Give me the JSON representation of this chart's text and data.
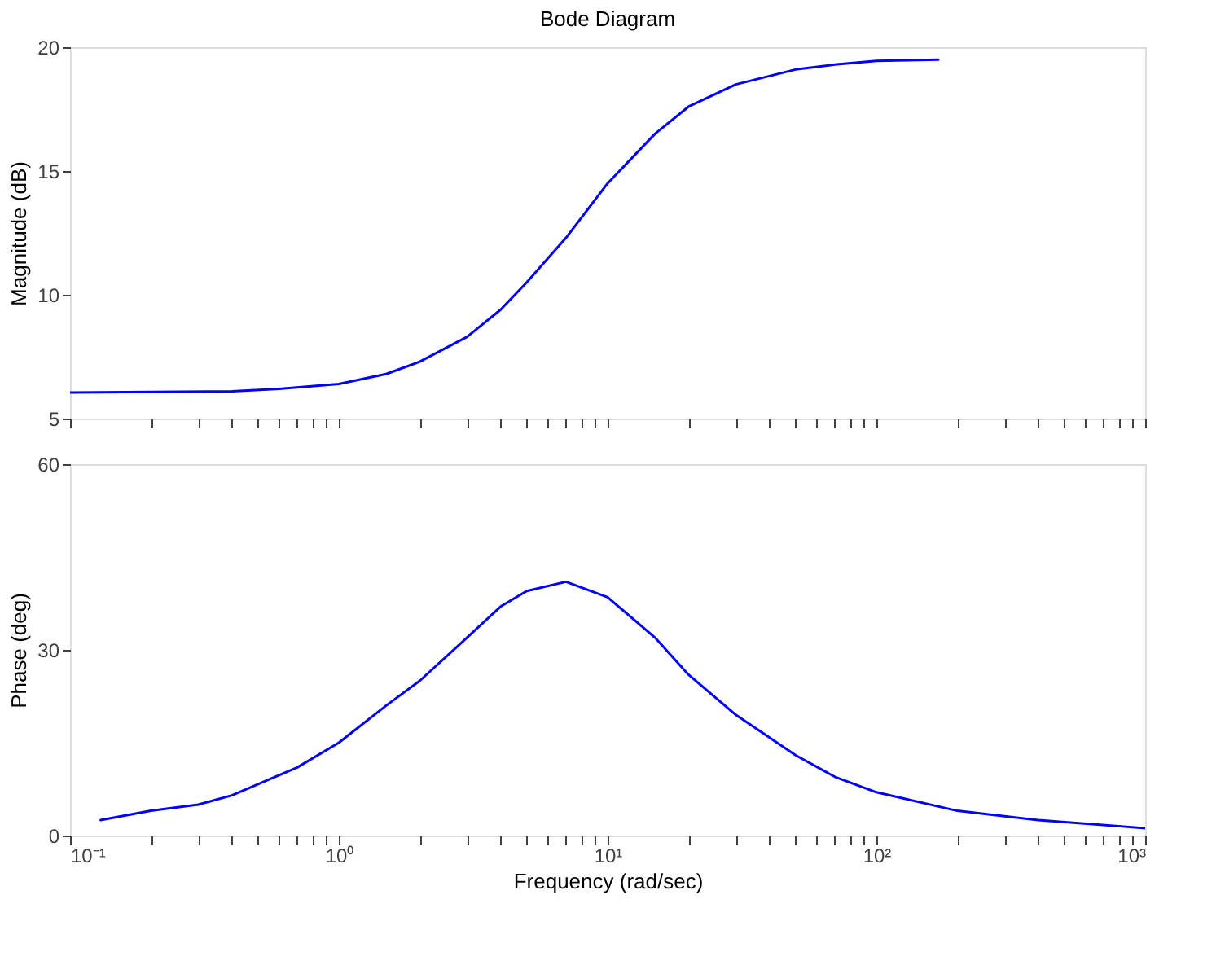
{
  "chart_data": [
    {
      "type": "line",
      "title": "Bode Diagram",
      "ylabel": "Magnitude (dB)",
      "log": "x",
      "tick_labels": "y",
      "grid": false,
      "line_style": "solid",
      "marker": "none",
      "xlim": [
        0.1,
        1000
      ],
      "ylim": [
        5,
        20
      ],
      "yticks": [
        5,
        10,
        15,
        20
      ],
      "xticks": [
        {
          "value": 0.1,
          "label": null
        },
        {
          "value": 0.2,
          "label": null
        },
        {
          "value": 0.3,
          "label": null
        },
        {
          "value": 0.4,
          "label": null
        },
        {
          "value": 0.5,
          "label": null
        },
        {
          "value": 0.6,
          "label": null
        },
        {
          "value": 0.7,
          "label": null
        },
        {
          "value": 0.8,
          "label": null
        },
        {
          "value": 0.9,
          "label": null
        },
        {
          "value": 1,
          "label": null
        },
        {
          "value": 2,
          "label": null
        },
        {
          "value": 3,
          "label": null
        },
        {
          "value": 4,
          "label": null
        },
        {
          "value": 5,
          "label": null
        },
        {
          "value": 6,
          "label": null
        },
        {
          "value": 7,
          "label": null
        },
        {
          "value": 8,
          "label": null
        },
        {
          "value": 9,
          "label": null
        },
        {
          "value": 10,
          "label": null
        },
        {
          "value": 20,
          "label": null
        },
        {
          "value": 30,
          "label": null
        },
        {
          "value": 40,
          "label": null
        },
        {
          "value": 50,
          "label": null
        },
        {
          "value": 60,
          "label": null
        },
        {
          "value": 70,
          "label": null
        },
        {
          "value": 80,
          "label": null
        },
        {
          "value": 90,
          "label": null
        },
        {
          "value": 100,
          "label": null
        },
        {
          "value": 200,
          "label": null
        },
        {
          "value": 300,
          "label": null
        },
        {
          "value": 400,
          "label": null
        },
        {
          "value": 500,
          "label": null
        },
        {
          "value": 600,
          "label": null
        },
        {
          "value": 700,
          "label": null
        },
        {
          "value": 800,
          "label": null
        },
        {
          "value": 900,
          "label": null
        },
        {
          "value": 1000,
          "label": null
        }
      ],
      "series": [
        {
          "color": "#0000ff",
          "x": [
            0.1,
            0.4,
            0.6,
            1,
            1.5,
            2,
            3,
            4,
            5,
            7,
            10,
            15,
            20,
            30,
            50,
            70,
            100,
            170
          ],
          "values": [
            6.05,
            6.1,
            6.2,
            6.4,
            6.8,
            7.3,
            8.3,
            9.4,
            10.5,
            12.3,
            14.5,
            16.5,
            17.6,
            18.5,
            19.1,
            19.3,
            19.45,
            19.5
          ]
        }
      ]
    },
    {
      "type": "line",
      "ylabel": "Phase (deg)",
      "xlabel": "Frequency (rad/sec)",
      "log": "x",
      "grid": false,
      "line_style": "solid",
      "marker": "none",
      "xlim": [
        0.1,
        1000
      ],
      "ylim": [
        0,
        60
      ],
      "yticks": [
        0,
        30,
        60
      ],
      "xticks": [
        {
          "value": 0.1,
          "label": "10⁻¹"
        },
        {
          "value": 0.2,
          "label": null
        },
        {
          "value": 0.3,
          "label": null
        },
        {
          "value": 0.4,
          "label": null
        },
        {
          "value": 0.5,
          "label": null
        },
        {
          "value": 0.6,
          "label": null
        },
        {
          "value": 0.7,
          "label": null
        },
        {
          "value": 0.8,
          "label": null
        },
        {
          "value": 0.9,
          "label": null
        },
        {
          "value": 1,
          "label": "10⁰"
        },
        {
          "value": 2,
          "label": null
        },
        {
          "value": 3,
          "label": null
        },
        {
          "value": 4,
          "label": null
        },
        {
          "value": 5,
          "label": null
        },
        {
          "value": 6,
          "label": null
        },
        {
          "value": 7,
          "label": null
        },
        {
          "value": 8,
          "label": null
        },
        {
          "value": 9,
          "label": null
        },
        {
          "value": 10,
          "label": "10¹"
        },
        {
          "value": 20,
          "label": null
        },
        {
          "value": 30,
          "label": null
        },
        {
          "value": 40,
          "label": null
        },
        {
          "value": 50,
          "label": null
        },
        {
          "value": 60,
          "label": null
        },
        {
          "value": 70,
          "label": null
        },
        {
          "value": 80,
          "label": null
        },
        {
          "value": 90,
          "label": null
        },
        {
          "value": 100,
          "label": "10²"
        },
        {
          "value": 200,
          "label": null
        },
        {
          "value": 300,
          "label": null
        },
        {
          "value": 400,
          "label": null
        },
        {
          "value": 500,
          "label": null
        },
        {
          "value": 600,
          "label": null
        },
        {
          "value": 700,
          "label": null
        },
        {
          "value": 800,
          "label": null
        },
        {
          "value": 900,
          "label": null
        },
        {
          "value": 1000,
          "label": "10³"
        }
      ],
      "series": [
        {
          "color": "#0000ff",
          "x": [
            0.13,
            0.2,
            0.3,
            0.4,
            0.7,
            1,
            1.5,
            2,
            3,
            4,
            5,
            7,
            10,
            15,
            20,
            30,
            50,
            70,
            100,
            200,
            400,
            1000
          ],
          "values": [
            2.5,
            4,
            5,
            6.5,
            11,
            15,
            21,
            25,
            32,
            37,
            39.5,
            41,
            38.5,
            32,
            26,
            19.5,
            13,
            9.5,
            7,
            4,
            2.5,
            1.2
          ]
        }
      ]
    }
  ]
}
